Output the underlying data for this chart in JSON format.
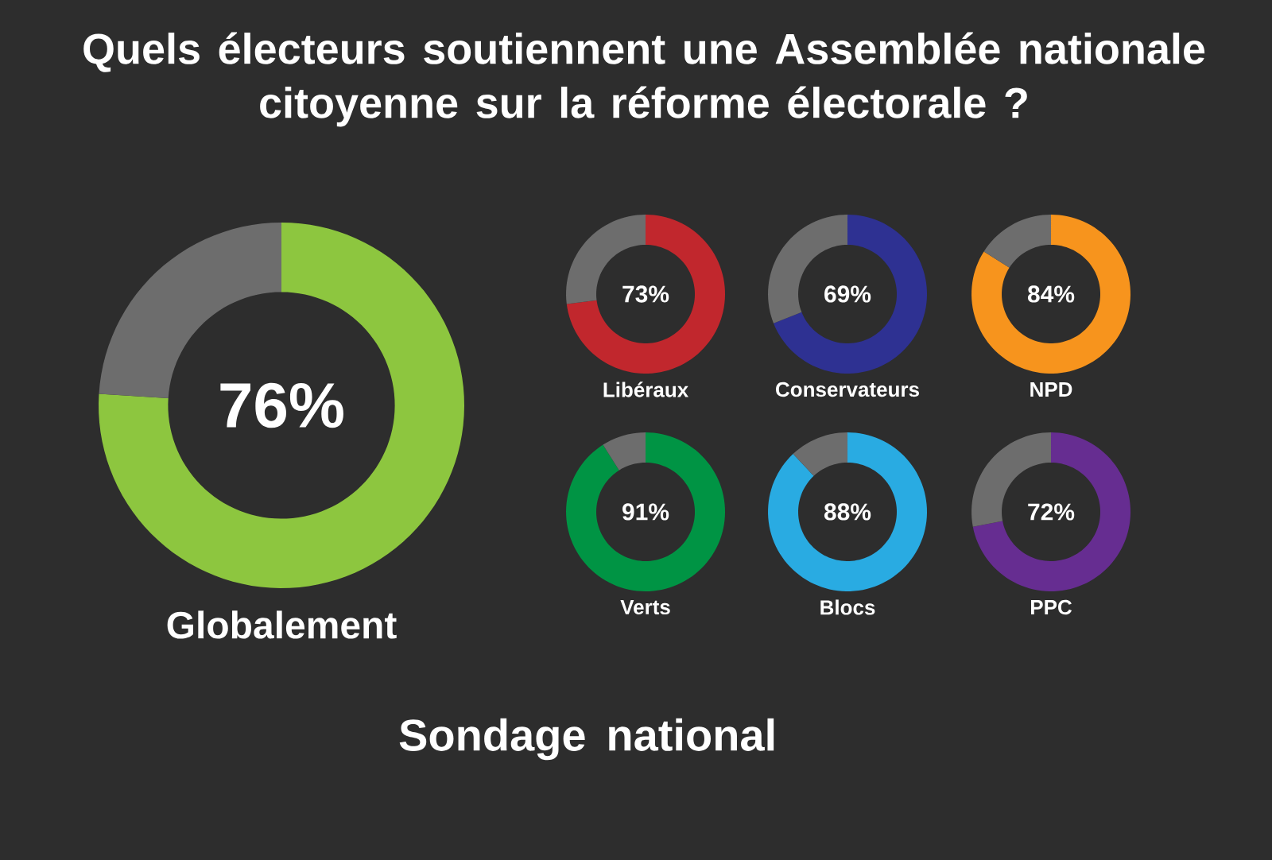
{
  "chart_data": [
    {
      "type": "donut",
      "title": "Quels électeurs soutiennent une Assemblée nationale citoyenne sur la réforme électorale ?",
      "xlabel": "Globalement",
      "categories": [
        null,
        null
      ],
      "values": [
        76,
        24
      ],
      "colors": [
        "#8dc63f",
        "#6d6d6d"
      ],
      "value_labels": [
        "76%",
        null
      ],
      "annotations": [
        "Sondage national"
      ]
    },
    {
      "type": "donut",
      "xlabel": "Libéraux",
      "categories": [
        null,
        null
      ],
      "values": [
        73,
        27
      ],
      "colors": [
        "#c1272d",
        "#6d6d6d"
      ],
      "value_labels": [
        "73%",
        null
      ]
    },
    {
      "type": "donut",
      "xlabel": "Conservateurs",
      "categories": [
        null,
        null
      ],
      "values": [
        69,
        31
      ],
      "colors": [
        "#2e3192",
        "#6d6d6d"
      ],
      "value_labels": [
        "69%",
        null
      ]
    },
    {
      "type": "donut",
      "xlabel": "NPD",
      "categories": [
        null,
        null
      ],
      "values": [
        84,
        16
      ],
      "colors": [
        "#f7941d",
        "#6d6d6d"
      ],
      "value_labels": [
        "84%",
        null
      ]
    },
    {
      "type": "donut",
      "xlabel": "Verts",
      "categories": [
        null,
        null
      ],
      "values": [
        91,
        9
      ],
      "colors": [
        "#009444",
        "#6d6d6d"
      ],
      "value_labels": [
        "91%",
        null
      ]
    },
    {
      "type": "donut",
      "xlabel": "Blocs",
      "categories": [
        null,
        null
      ],
      "values": [
        88,
        12
      ],
      "colors": [
        "#29abe2",
        "#6d6d6d"
      ],
      "value_labels": [
        "88%",
        null
      ]
    },
    {
      "type": "donut",
      "xlabel": "PPC",
      "categories": [
        null,
        null
      ],
      "values": [
        72,
        28
      ],
      "colors": [
        "#662d91",
        "#6d6d6d"
      ],
      "value_labels": [
        "72%",
        null
      ]
    }
  ]
}
